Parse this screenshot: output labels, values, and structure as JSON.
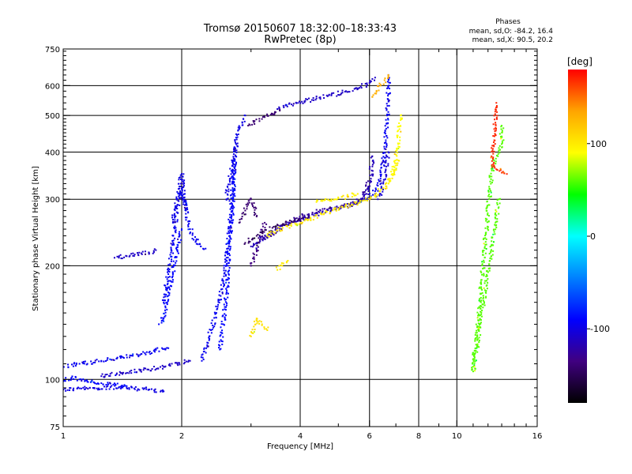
{
  "chart_data": {
    "type": "scatter",
    "title": "Tromsø 20150607 18:32:00–18:33:43",
    "subtitle": "RwPretec (8p)",
    "xlabel": "Frequency [MHz]",
    "ylabel": "Stationary phase Virtual Height [km]",
    "x_scale": "log",
    "y_scale": "log",
    "xlim": [
      1,
      16
    ],
    "ylim": [
      75,
      750
    ],
    "x_ticks": [
      1,
      2,
      4,
      6,
      8,
      10,
      16
    ],
    "y_ticks": [
      75,
      100,
      200,
      300,
      400,
      500,
      600,
      750
    ],
    "grid": true,
    "stats": {
      "title": "Phases",
      "line1": "mean, sd,O: -84.2, 16.4",
      "line2": "mean, sd,X:  90.5, 20.2"
    },
    "colorbar": {
      "label": "[deg]",
      "range": [
        -180,
        180
      ],
      "ticks": [
        100,
        0,
        -100
      ],
      "colors": [
        "#ff0000",
        "#ffa500",
        "#ffff00",
        "#00ff00",
        "#00ffff",
        "#0080ff",
        "#0000ff",
        "#400080",
        "#000000"
      ]
    },
    "series": [
      {
        "traces": [
          {
            "x": [
              1.0,
              1.2,
              1.45,
              1.65,
              1.8
            ],
            "y": [
              94,
              95,
              95,
              94,
              93
            ],
            "phase": -100
          },
          {
            "x": [
              1.0,
              1.1,
              1.25,
              1.4,
              1.55,
              1.7,
              1.85
            ],
            "y": [
              108,
              110,
              112,
              114,
              116,
              119,
              121
            ],
            "phase": -95
          },
          {
            "x": [
              1.25,
              1.4,
              1.6,
              1.8,
              1.95,
              2.1
            ],
            "y": [
              102,
              104,
              106,
              108,
              110,
              112
            ],
            "phase": -110
          },
          {
            "x": [
              1.0,
              1.05,
              1.1,
              1.2,
              1.3,
              1.45
            ],
            "y": [
              99,
              101,
              100,
              98,
              97,
              96
            ],
            "phase": -90
          },
          {
            "x": [
              1.35,
              1.45,
              1.55,
              1.65,
              1.72
            ],
            "y": [
              210,
              212,
              214,
              217,
              220
            ],
            "phase": -110
          },
          {
            "x": [
              1.8,
              1.85,
              1.9,
              1.95,
              2.0,
              2.1,
              2.2,
              2.3
            ],
            "y": [
              160,
              190,
              230,
              290,
              320,
              250,
              228,
              222
            ],
            "phase": -95
          },
          {
            "x": [
              1.75,
              1.8,
              1.82,
              1.85,
              1.9,
              1.95,
              2.0
            ],
            "y": [
              140,
              145,
              155,
              170,
              190,
              220,
              250
            ],
            "phase": -90
          },
          {
            "x": [
              1.9,
              1.95,
              2.0,
              2.05
            ],
            "y": [
              260,
              300,
              350,
              280
            ],
            "phase": -100
          },
          {
            "x": [
              2.25,
              2.35,
              2.45,
              2.55,
              2.6,
              2.65,
              2.7,
              2.75
            ],
            "y": [
              112,
              130,
              150,
              180,
              210,
              260,
              330,
              420
            ],
            "phase": -95
          },
          {
            "x": [
              2.5,
              2.55,
              2.6,
              2.62,
              2.65,
              2.7,
              2.72
            ],
            "y": [
              120,
              140,
              170,
              200,
              240,
              300,
              380
            ],
            "phase": -90
          },
          {
            "x": [
              2.6,
              2.65,
              2.7,
              2.75,
              2.8,
              2.85,
              2.9
            ],
            "y": [
              300,
              340,
              380,
              420,
              460,
              480,
              500
            ],
            "phase": -100
          },
          {
            "x": [
              2.8,
              2.85,
              2.9,
              2.95,
              3.0,
              3.05,
              3.1
            ],
            "y": [
              260,
              270,
              280,
              290,
              300,
              285,
              270
            ],
            "phase": -140
          },
          {
            "x": [
              3.0,
              3.05,
              3.1,
              3.15,
              3.2,
              3.25
            ],
            "y": [
              200,
              210,
              220,
              230,
              245,
              260
            ],
            "phase": -135
          },
          {
            "x": [
              2.95,
              3.05,
              3.15,
              3.25,
              3.4,
              3.55
            ],
            "y": [
              470,
              480,
              490,
              495,
              505,
              515
            ],
            "phase": -140
          },
          {
            "x": [
              3.5,
              3.8,
              4.1,
              4.4,
              4.8,
              5.2,
              5.6,
              6.0,
              6.2
            ],
            "y": [
              520,
              535,
              545,
              555,
              565,
              578,
              590,
              610,
              630
            ],
            "phase": -110
          },
          {
            "x": [
              3.2,
              3.5,
              3.8,
              4.1,
              4.5,
              5.0,
              5.5,
              5.8,
              5.95
            ],
            "y": [
              235,
              248,
              262,
              272,
              280,
              285,
              292,
              305,
              335
            ],
            "phase": -125
          },
          {
            "x": [
              3.0,
              3.3,
              3.6,
              4.0,
              4.4,
              4.8,
              5.2,
              5.6,
              5.9,
              6.05,
              6.1
            ],
            "y": [
              225,
              240,
              255,
              265,
              273,
              281,
              287,
              295,
              310,
              340,
              390
            ],
            "phase": -115
          },
          {
            "x": [
              2.9,
              3.1,
              3.4,
              3.8,
              4.2
            ],
            "y": [
              230,
              240,
              252,
              262,
              270
            ],
            "phase": -145
          },
          {
            "x": [
              5.6,
              5.9,
              6.2,
              6.4,
              6.5,
              6.6,
              6.65,
              6.7,
              6.7
            ],
            "y": [
              295,
              300,
              315,
              340,
              380,
              430,
              500,
              570,
              640
            ],
            "phase": -95
          },
          {
            "x": [
              6.3,
              6.4,
              6.5,
              6.6,
              6.7
            ],
            "y": [
              300,
              310,
              330,
              360,
              400
            ],
            "phase": -105
          },
          {
            "x": [
              3.3,
              3.5,
              3.8,
              4.2,
              4.6,
              5.0,
              5.4,
              5.8,
              6.2,
              6.6,
              6.9,
              7.1
            ],
            "y": [
              240,
              248,
              255,
              265,
              275,
              283,
              290,
              298,
              308,
              325,
              350,
              380
            ],
            "phase": 100
          },
          {
            "x": [
              4.4,
              4.6,
              4.8,
              5.0,
              5.3,
              5.6
            ],
            "y": [
              295,
              298,
              300,
              302,
              305,
              310
            ],
            "phase": 95
          },
          {
            "x": [
              6.7,
              6.85,
              7.0,
              7.1,
              7.15,
              7.2
            ],
            "y": [
              330,
              350,
              380,
              420,
              460,
              500
            ],
            "phase": 90
          },
          {
            "x": [
              3.0,
              3.05,
              3.1,
              3.2,
              3.3
            ],
            "y": [
              130,
              138,
              145,
              140,
              135
            ],
            "phase": 105
          },
          {
            "x": [
              3.5,
              3.6,
              3.7
            ],
            "y": [
              195,
              200,
              205
            ],
            "phase": 100
          },
          {
            "x": [
              6.1,
              6.25,
              6.4,
              6.55,
              6.7
            ],
            "y": [
              560,
              580,
              600,
              620,
              640
            ],
            "phase": 130
          },
          {
            "x": [
              13.0,
              13.0,
              13.0,
              12.3,
              11.0,
              12.8
            ],
            "y": [
              470,
              440,
              420,
              365,
              105,
              300
            ],
            "phase": 60
          },
          {
            "x": [
              12.6,
              12.3,
              13.4
            ],
            "y": [
              540,
              365,
              350
            ],
            "phase": 170
          }
        ]
      }
    ]
  }
}
